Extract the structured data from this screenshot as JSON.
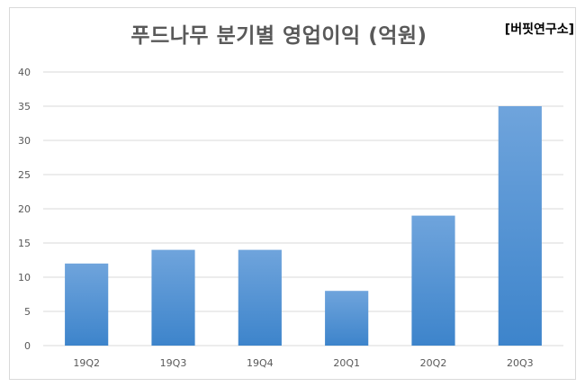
{
  "chart_data": {
    "type": "bar",
    "title": "푸드나무 분기별 영업이익 (억원)",
    "source_label": "[버핏연구소]",
    "categories": [
      "19Q2",
      "19Q3",
      "19Q4",
      "20Q1",
      "20Q2",
      "20Q3"
    ],
    "values": [
      12,
      14,
      14,
      8,
      19,
      35
    ],
    "ylim": [
      0,
      40
    ],
    "yticks": [
      0,
      5,
      10,
      15,
      20,
      25,
      30,
      35,
      40
    ],
    "grid": true,
    "legend": "none",
    "colors": {
      "bar_top": "#6fa4dc",
      "bar_bottom": "#3d84cb",
      "grid": "#d9d9d9"
    }
  }
}
